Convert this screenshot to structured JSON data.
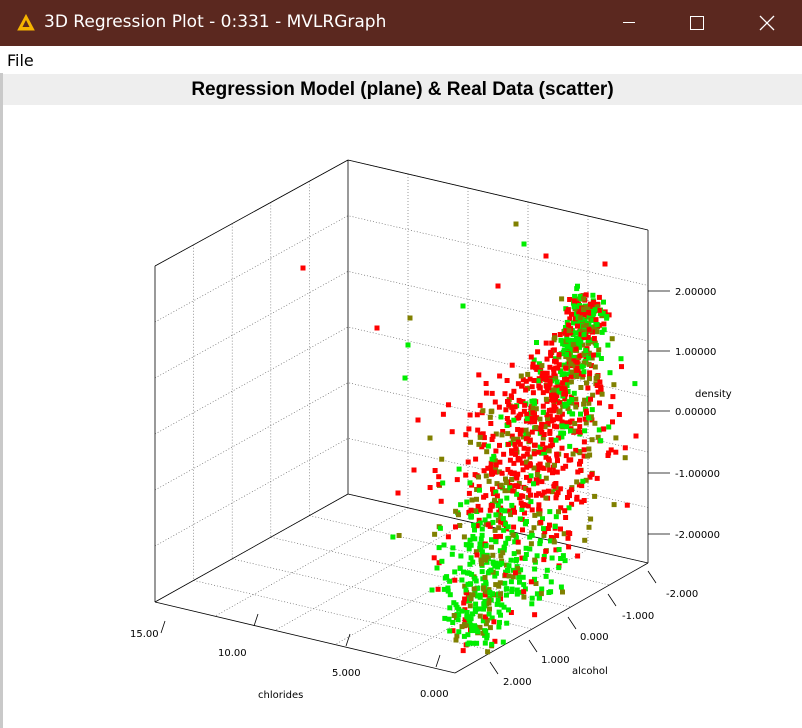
{
  "window": {
    "title": "3D Regression Plot - 0:331 - MVLRGraph",
    "controls": [
      "minimize",
      "maximize",
      "close"
    ]
  },
  "menu": {
    "file_label": "File"
  },
  "chart_data": {
    "type": "scatter",
    "title": "Regression Model (plane) & Real Data (scatter)",
    "axes": {
      "x": {
        "label": "chlorides",
        "ticks": [
          "15.00",
          "10.00",
          "5.000",
          "0.000"
        ]
      },
      "y": {
        "label": "alcohol",
        "ticks": [
          "-2.000",
          "-1.000",
          "0.000",
          "1.000",
          "2.000"
        ]
      },
      "z": {
        "label": "density",
        "ticks": [
          "2.00000",
          "1.00000",
          "0.00000",
          "-1.00000",
          "-2.00000"
        ]
      }
    },
    "grid": true,
    "colors": {
      "high": "#ff0000",
      "mid": "#808000",
      "low": "#00ee00"
    },
    "point_cloud": "approximately 1600 points, dense red cluster upper right, greener toward lower front"
  }
}
